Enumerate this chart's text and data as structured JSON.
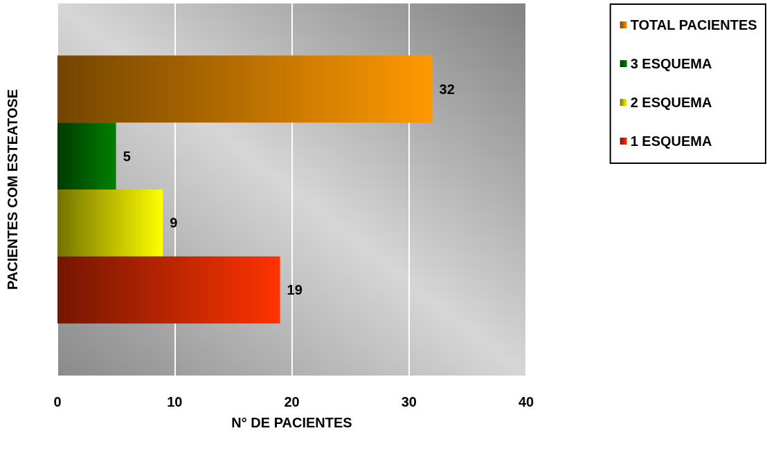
{
  "chart_data": {
    "type": "bar",
    "orientation": "horizontal",
    "categories": [
      null
    ],
    "series": [
      {
        "name": "TOTAL PACIENTES",
        "color": "#ff9900",
        "values": [
          32
        ]
      },
      {
        "name": "3 ESQUEMA",
        "color": "#008000",
        "values": [
          5
        ]
      },
      {
        "name": "2 ESQUEMA",
        "color": "#ffff00",
        "values": [
          9
        ]
      },
      {
        "name": "1 ESQUEMA",
        "color": "#ff3300",
        "values": [
          19
        ]
      }
    ],
    "xlabel": "N° DE PACIENTES",
    "ylabel": "PACIENTES COM ESTEATOSE",
    "xlim": [
      0,
      40
    ],
    "xticks": [
      0,
      10,
      20,
      30,
      40
    ],
    "grid": "x",
    "legend": "top right",
    "data_labels": true
  }
}
